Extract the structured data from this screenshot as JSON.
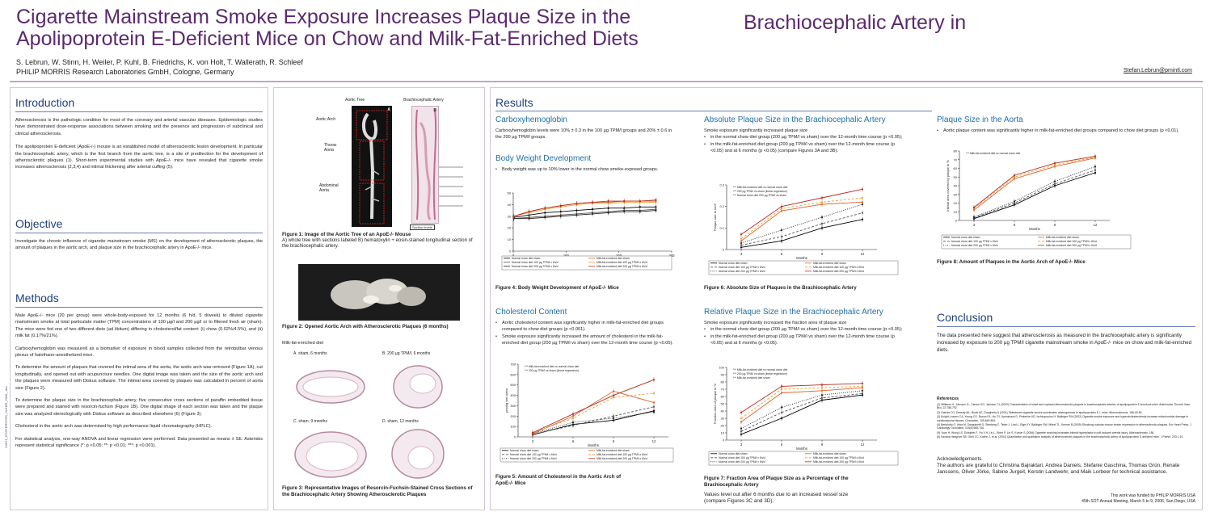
{
  "header": {
    "title_line1": "Cigarette Mainstream Smoke Exposure Increases Plaque Size in the",
    "title_line2": "Apolipoprotein E-Deficient Mice on Chow and Milk-Fat-Enriched Diets",
    "title_part3": "Brachiocephalic Artery in",
    "authors": "S. Lebrun, W. Stinn, H. Weiler, P. Kuhl, B. Friedrichs, K. von Holt, T. Wallerath, R. Schleef",
    "affiliation": "PHILIP MORRIS Research Laboratories GmbH, Cologne, Germany",
    "email": "Stefan.Lebrun@pmintl.com"
  },
  "side_ref": "X3671_POSTERSTER_SLEBR_2006_.doc",
  "introduction": {
    "heading": "Introduction",
    "p1": "Atherosclerosis is the pathologic condition for most of the coronary and arterial vascular diseases. Epidemiologic studies have demonstrated dose-response associations between smoking and the presence and progression of subclinical and clinical atherosclerosis.",
    "p2": "The apolipoprotein E-deficient (ApoE-/-) mouse is an established model of atherosclerotic lesion development. In particular the brachiocephalic artery, which is the first branch from the aortic tree, is a site of predilection for the development of atherosclerotic plaques (1). Short-term experimental studies with ApoE-/- mice have revealed that cigarette smoke increases atherosclerosis (2,3,4) and intimal thickening after arterial cuffing (5)."
  },
  "objective": {
    "heading": "Objective",
    "p1": "Investigate the chronic influence of cigarette mainstream smoke (MS) on the development of atherosclerotic plaques, the amount of plaques in the aortic arch, and plaque size in the brachiocephalic artery in ApoE-/- mice."
  },
  "methods": {
    "heading": "Methods",
    "p1": "Male ApoE-/- mice (20 per group) were whole-body-exposed for 12 months (6 h/d, 5 d/week) to diluted cigarette mainstream smoke at total particulate matter (TPM) concentrations of 100 µg/l and 200 µg/l or to filtered fresh air (sham). The mice were fed one of two different diets (ad libitum) differing in cholesterol/fat content: (i) chow (0.02%/4.5%), and (ii) milk fat (0.17%/21%).",
    "p2": "Carboxyhemoglobin was measured as a biomarker of exposure in blood samples collected from the retrobulbar venous plexus of halothane-anesthetized mice.",
    "p3": "To determine the amount of plaques that covered the intimal area of the aorta, the aortic arch was removed (Figure 1A), cut longitudinally, and opened out with acupuncture needles. One digital image was taken and the size of the aortic arch and the plaques were measured with Diskus software. The intimal area covered by plaques was calculated in percent of aorta size (Figure 2).",
    "p4": "To determine the plaque size in the brachiocephalic artery, five consecutive cross sections of paraffin embedded tissue were prepared and stained with resorcin-fuchsin (Figure 1B). One digital image of each section was taken and the plaque size was analyzed stereologically with Diskus software as described elsewhere (6) (Figure 3).",
    "p5": "Cholesterol in the aortic arch was determined by high performance liquid chromatography (HPLC).",
    "p6": "For statistical analysis, one-way ANOVA and linear regression were performed. Data presented as means ± SE. Asterisks represent statistical significance (*: p <0.05; **: p <0.01; ***: p <0.001)."
  },
  "figure1": {
    "label_aortic_tree": "Aortic Tree",
    "label_a": "A",
    "label_b": "B",
    "label_brachio": "Brachiocephalic Artery",
    "label_aortic_arch": "Aortic Arch",
    "label_thorax": "Thorax Aorta",
    "label_abdominal": "Abdominal Aorta",
    "label_section": "Section levels",
    "caption_bold": "Figure 1: Image of the Aortic Tree of an ApoE-/- Mouse",
    "caption_rest": "A) whole tree with sections labeled  B) hematoxylin + eosin-stained longitudinal section of the brachiocephalic artery."
  },
  "figure2": {
    "caption": "Figure 2: Opened Aortic Arch with Atherosclerotic Plaques (6 months)"
  },
  "figure3": {
    "diet_label": "Milk-fat-enriched diet",
    "panel_a": "A.  sham, 6 months",
    "panel_b": "B.  200 µg TPM/l, 6 months",
    "panel_c": "C.  sham, 9 months",
    "panel_d": "D.  sham, 12 months",
    "caption": "Figure 3:  Representative Images of Resorcin-Fuchsin-Stained Cross Sections of the Brachiocephalic Artery Showing Atherosclerotic Plaques"
  },
  "results": {
    "heading": "Results",
    "carboxy": {
      "heading": "Carboxyhemoglobin",
      "text": "Carboxyhemoglobin levels were 10% ± 0.3 in the 100 µg TPM/l groups and 20% ± 0.6 in the 200 µg TPM/l groups."
    },
    "bodyweight": {
      "heading": "Body Weight Development",
      "bullet": "Body weight was up to 10% lower in the normal chow smoke-exposed groups.",
      "caption": "Figure 4: Body Weight Development of ApoE-/- Mice"
    },
    "cholesterol": {
      "heading": "Cholesterol Content",
      "bullet1": "Aortic cholesterol content was significantly higher in milk-fat-enriched diet groups compared to chow diet groups (p <0.001).",
      "bullet2": "Smoke exposure significantly increased the amount of cholesterol in the milk-fat-enriched diet group (200 µg TPM/l vs sham) over the 12-month time course (p <0.05).",
      "caption": "Figure 5:  Amount of Cholesterol in the Aortic Arch of ApoE-/- Mice"
    },
    "abs_plaque": {
      "heading": "Absolute Plaque Size in the Brachiocephalic Artery",
      "intro": "Smoke exposure significantly increased plaque size",
      "bullet1": "in the normal chow diet group (200 µg TPM/l vs sham) over the 12-month time course (p <0.05);",
      "bullet2": "in the milk-fat-enriched diet group (200 µg TPM/l vs sham) over the 12-month time course (p <0.05) and at 6 months (p <0.05) (compare Figures 3A and 3B).",
      "caption": "Figure 6: Absolute Size of Plaques in the Brachiocephalic Artery"
    },
    "rel_plaque": {
      "heading": "Relative Plaque Size in the Brachiocephalic Artery",
      "intro": "Smoke exposure significantly increased the fraction area of plaque size",
      "bullet1": "in the normal chow diet group (200 µg TPM/l vs sham) over the 12-month time course (p <0.05);",
      "bullet2": "in the milk-fat-enriched diet group (200 µg TPM/l vs sham) over the 12-month time course (p <0.05) and at 6 months (p <0.05).",
      "caption": "Figure 7: Fraction Area of Plaque Size as a Percentage of the Brachiocephalic Artery",
      "note": "Values level out after 6 months due to an increased vessel size (compare Figures 3C and 3D)."
    },
    "aorta": {
      "heading": "Plaque Size in the Aorta",
      "bullet": "Aortic plaque content was significantly higher in milk-fat-enriched diet groups compared to chow diet groups (p <0.01).",
      "caption": "Figure 8: Amount of Plaques in the Aortic Arch of ApoE-/- Mice"
    }
  },
  "conclusion": {
    "heading": "Conclusion",
    "text": "The data presented here suggest that atherosclerosis as measured in the brachiocephalic artery is significantly increased by exposure to 200 µg TPM/l cigarette mainstream smoke in ApoE-/- mice on chow and milk-fat-enriched diets."
  },
  "references": {
    "heading": "References",
    "items": [
      "(1)  Williams H, Johnson JL, Carson KG, Jackson CL (2002) Characteristics of intact and ruptured atherosclerotic plaques in brachiocephalic arteries of apolipoprotein E knockout mice. Arterioscler Thromb Vasc Biol, 22:788-792.",
      "(2)  Gairola CG, Drawdy ML, Block AE, Daugherty A (2001) Sidestream cigarette smoke accelerates atherogenesis in apolipoprotein E-/- mice. Atherosclerosis, 156:49-55.",
      "(3)  Knight-Lozano CA, Young CG, Burow DL, Hu ZY, Uyeminami D, Pinkerton KE, Ischiropoulos H, Ballinger SW (2002) Cigarette smoke exposure and hypercholesterolemia increase mitochondrial damage in cardiovascular tissues. Circulation, 105:849-854.",
      "(4)  Bertolotto G, Arba M, Sanguinetti G, Stenberg C, Teber J, Lind L, Etge KY, Ballinger SW, Mitzel TL, Kenner B (2005) Shocking rockstar mouse tender expression in atherosclerotic plaques. Eur Heart Press. J Cardiology Circulation, 115(8) 688-706.",
      "(5)  Yuan H, Wong LS, Schopfer F, Yiu Y-H, Liu L, Shen P, Lin S, Kumar S (2006) Cigarette smoking increases intimal hyperplasia in cuff-induced arterial injury. Atherosclerosis, 186.",
      "(6)  Kaviani-Hanghort SB, Oleh CC, Koehn J, et al. (2004) Quantitative and qualitative analysis of atherosclerotic plaques in the brachiocephalic artery of apolipoprotein E-deficient mice. J Pathol. 203:1-10."
    ]
  },
  "acknowledgements": {
    "heading": "Acknowledgements",
    "text": "The authors are grateful to Christina Bajraktari, Andrea Daniels, Stefanie Gaschina, Thomas Grün, Renate Janssens, Oliver Jörke, Sabine Jurgeit, Kerstin Landwehr, and Maik Lorbeer for technical assistance."
  },
  "footer": {
    "funding": "This work was funded by PHILIP MORRIS USA",
    "meeting": "45th SOT Annual Meeting, March 5 to 9, 2006, San Diego, USA"
  },
  "colors": {
    "title": "#5b2a6e",
    "section_heading": "#1f3f7a",
    "sub_heading": "#1f6fa3",
    "chow_sham": "#000000",
    "chow_100": "#555555",
    "chow_200": "#222222",
    "milk_sham": "#d9632a",
    "milk_100": "#e8a23a",
    "milk_200": "#b52a1e"
  },
  "legend6": {
    "items": [
      "Normal chow diet sham",
      "Milk-fat-enriched diet sham",
      "Normal chow diet 100 µg TPM/l x 6h/d",
      "Milk-fat-enriched diet 100 µg TPM/l x 6h/d",
      "Normal chow diet 200 µg TPM/l x 6h/d",
      "Milk-fat-enriched diet 200 µg TPM/l x 6h/d"
    ]
  },
  "legend5": {
    "items": [
      "Normal chow diet sham",
      "Milk-fat-enriched diet sham",
      "Normal chow diet 100 µg TPM/l x 6h/d",
      "Milk-fat-enriched diet 100 µg TPM/l x 6h/d",
      "Normal chow diet 200 µg TPM/l x 6h/d",
      "Milk-fat-enriched diet 200 µg TPM/l x 6h/d"
    ]
  },
  "legend4": {
    "items": [
      "Normal chow diet sham",
      "Milk-fat-enriched diet sham",
      "Normal chow diet 100 µg TPM/l x 6h/d",
      "Milk-fat-enriched diet 100 µg TPM/l x 6h/d",
      "Normal chow diet 200 µg TPM/l x 6h/d",
      "Milk-fat-enriched diet 200 µg TPM/l x 6h/d"
    ]
  },
  "chart_data": [
    {
      "id": "fig4",
      "type": "line",
      "x": [
        1,
        30,
        60,
        90,
        120,
        150,
        180,
        210,
        240,
        270
      ],
      "xticks": [
        0,
        100,
        200,
        300
      ],
      "ylim": [
        0,
        50
      ],
      "yticks": [
        0,
        10,
        20,
        30,
        40,
        50
      ],
      "series": [
        {
          "name": "Normal chow diet sham",
          "color": "#000000",
          "values": [
            29,
            31,
            33,
            34,
            35,
            36,
            37,
            37,
            38,
            38
          ]
        },
        {
          "name": "Normal chow diet 100 µg TPM/l x 6h/d",
          "color": "#555555",
          "values": [
            28,
            29,
            30,
            31,
            32,
            33,
            34,
            35,
            35,
            36
          ]
        },
        {
          "name": "Normal chow diet 200 µg TPM/l x 6h/d",
          "color": "#222222",
          "values": [
            28,
            28,
            29,
            30,
            31,
            32,
            33,
            34,
            34,
            35
          ]
        },
        {
          "name": "Milk-fat-enriched diet sham",
          "color": "#d9632a",
          "values": [
            30,
            34,
            37,
            39,
            41,
            42,
            42,
            43,
            43,
            43
          ]
        },
        {
          "name": "Milk-fat-enriched diet 100 µg TPM/l x 6h/d",
          "color": "#e8a23a",
          "values": [
            30,
            33,
            36,
            38,
            40,
            41,
            41,
            42,
            42,
            42
          ]
        },
        {
          "name": "Milk-fat-enriched diet 200 µg TPM/l x 6h/d",
          "color": "#b52a1e",
          "values": [
            30,
            34,
            37,
            39,
            41,
            42,
            43,
            43,
            43,
            44
          ]
        }
      ]
    },
    {
      "id": "fig5",
      "type": "line",
      "x": [
        3,
        6,
        9,
        12
      ],
      "xlabel": "Months",
      "ylabel": "µmol/g wet aorta",
      "ylim": [
        0,
        700
      ],
      "yticks": [
        0,
        100,
        200,
        300,
        400,
        500,
        600,
        700
      ],
      "legend_inset": [
        "Milk-fat-enriched diet vs normal chow diet",
        "200 µg TPM/l vs sham (linear regression)"
      ],
      "series": [
        {
          "name": "Normal chow diet sham",
          "color": "#000000",
          "dash": "",
          "values": [
            20,
            120,
            160,
            250
          ]
        },
        {
          "name": "Normal chow diet 100 µg TPM/l x 6h/d",
          "color": "#555555",
          "dash": "3,2",
          "values": [
            25,
            110,
            200,
            290
          ]
        },
        {
          "name": "Normal chow diet 200 µg TPM/l x 6h/d",
          "color": "#222222",
          "dash": "1,1.5",
          "values": [
            30,
            140,
            180,
            240
          ]
        },
        {
          "name": "Milk-fat-enriched diet sham",
          "color": "#d9632a",
          "dash": "",
          "values": [
            30,
            200,
            440,
            330
          ]
        },
        {
          "name": "Milk-fat-enriched diet 100 µg TPM/l x 6h/d",
          "color": "#e8a23a",
          "dash": "3,2",
          "values": [
            40,
            180,
            380,
            420
          ]
        },
        {
          "name": "Milk-fat-enriched diet 200 µg TPM/l x 6h/d",
          "color": "#b52a1e",
          "dash": "",
          "values": [
            40,
            220,
            400,
            550
          ]
        }
      ]
    },
    {
      "id": "fig6",
      "type": "line",
      "x": [
        3,
        6,
        9,
        12
      ],
      "xlabel": "Months",
      "ylabel": "Plaque size in mm²",
      "ylim": [
        0,
        0.3
      ],
      "yticks": [
        0,
        0.1,
        0.2,
        0.3
      ],
      "legend_inset": [
        "Milk-fat-enriched diet vs normal chow diet",
        "200 µg TPM/l vs sham (linear regression)",
        "Normal chow diet 200 µg TPM/l vs sham"
      ],
      "series": [
        {
          "name": "Normal chow diet sham",
          "color": "#000000",
          "dash": "",
          "values": [
            0.01,
            0.04,
            0.1,
            0.14
          ]
        },
        {
          "name": "Normal chow diet 100 µg TPM/l x 6h/d",
          "color": "#555555",
          "dash": "3,2",
          "values": [
            0.02,
            0.06,
            0.12,
            0.17
          ]
        },
        {
          "name": "Normal chow diet 200 µg TPM/l x 6h/d",
          "color": "#222222",
          "dash": "1,1.5",
          "values": [
            0.03,
            0.09,
            0.15,
            0.21
          ]
        },
        {
          "name": "Milk-fat-enriched diet sham",
          "color": "#d9632a",
          "dash": "",
          "values": [
            0.04,
            0.18,
            0.21,
            0.22
          ]
        },
        {
          "name": "Milk-fat-enriched diet 100 µg TPM/l x 6h/d",
          "color": "#e8a23a",
          "dash": "3,2",
          "values": [
            0.05,
            0.19,
            0.22,
            0.24
          ]
        },
        {
          "name": "Milk-fat-enriched diet 200 µg TPM/l x 6h/d",
          "color": "#b52a1e",
          "dash": "",
          "values": [
            0.07,
            0.2,
            0.24,
            0.28
          ]
        }
      ]
    },
    {
      "id": "fig7",
      "type": "line",
      "x": [
        3,
        6,
        9,
        12
      ],
      "xlabel": "Months",
      "ylabel": "Fraction area of plaque in %",
      "ylim": [
        0,
        100
      ],
      "yticks": [
        0,
        10,
        20,
        30,
        40,
        50,
        60,
        70,
        80,
        90,
        100
      ],
      "legend_inset": [
        "Milk-fat-enriched diet vs normal chow diet",
        "200 µg TPM/l vs sham (linear regression)",
        "Milk-fat-enriched diet sham"
      ],
      "series": [
        {
          "name": "Normal chow diet sham",
          "color": "#000000",
          "dash": "",
          "values": [
            8,
            30,
            55,
            62
          ]
        },
        {
          "name": "Normal chow diet 100 µg TPM/l x 6h/d",
          "color": "#555555",
          "dash": "3,2",
          "values": [
            12,
            38,
            58,
            64
          ]
        },
        {
          "name": "Normal chow diet 200 µg TPM/l x 6h/d",
          "color": "#222222",
          "dash": "1,1.5",
          "values": [
            16,
            45,
            62,
            68
          ]
        },
        {
          "name": "Milk-fat-enriched diet sham",
          "color": "#d9632a",
          "dash": "",
          "values": [
            25,
            65,
            68,
            72
          ]
        },
        {
          "name": "Milk-fat-enriched diet 100 µg TPM/l x 6h/d",
          "color": "#e8a23a",
          "dash": "3,2",
          "values": [
            30,
            70,
            72,
            74
          ]
        },
        {
          "name": "Milk-fat-enriched diet 200 µg TPM/l x 6h/d",
          "color": "#b52a1e",
          "dash": "",
          "values": [
            38,
            74,
            76,
            78
          ]
        }
      ]
    },
    {
      "id": "fig8",
      "type": "line",
      "x": [
        3,
        6,
        9,
        12
      ],
      "xlabel": "Months",
      "ylabel": "Intimal area covered by plaque in %",
      "ylim": [
        0,
        80
      ],
      "yticks": [
        0,
        10,
        20,
        30,
        40,
        50,
        60,
        70,
        80
      ],
      "legend_inset": [
        "Milk-fat-enriched diet vs normal chow diet"
      ],
      "series": [
        {
          "name": "Normal chow diet sham",
          "color": "#000000",
          "dash": "",
          "values": [
            2,
            18,
            40,
            55
          ]
        },
        {
          "name": "Normal chow diet 100 µg TPM/l x 6h/d",
          "color": "#555555",
          "dash": "3,2",
          "values": [
            3,
            20,
            42,
            58
          ]
        },
        {
          "name": "Normal chow diet 200 µg TPM/l x 6h/d",
          "color": "#222222",
          "dash": "1,1.5",
          "values": [
            4,
            22,
            45,
            62
          ]
        },
        {
          "name": "Milk-fat-enriched diet sham",
          "color": "#d9632a",
          "dash": "",
          "values": [
            12,
            48,
            62,
            72
          ]
        },
        {
          "name": "Milk-fat-enriched diet 100 µg TPM/l x 6h/d",
          "color": "#e8a23a",
          "dash": "3,2",
          "values": [
            14,
            50,
            64,
            73
          ]
        },
        {
          "name": "Milk-fat-enriched diet 200 µg TPM/l x 6h/d",
          "color": "#b52a1e",
          "dash": "",
          "values": [
            15,
            52,
            66,
            74
          ]
        }
      ]
    }
  ]
}
